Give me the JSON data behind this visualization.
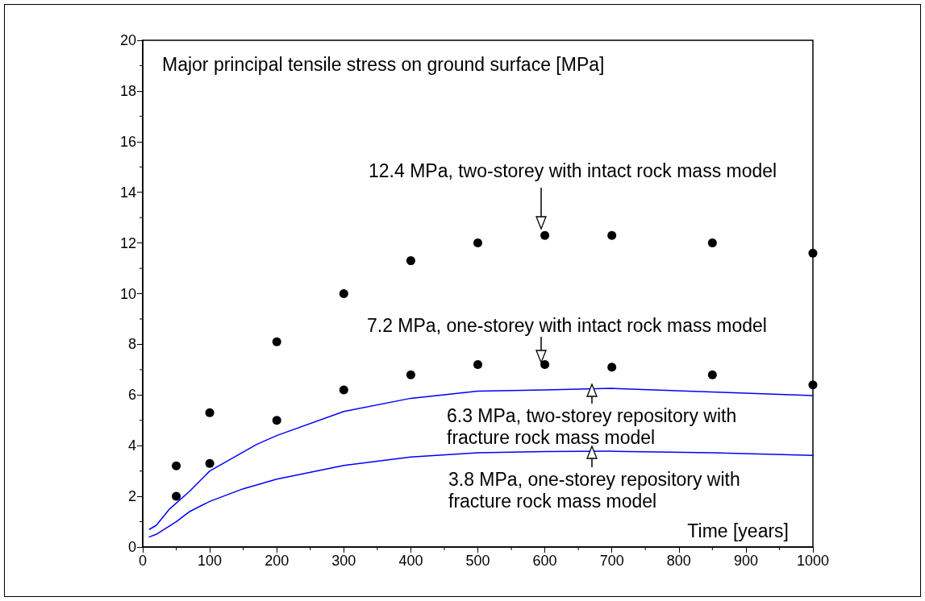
{
  "chart_data": {
    "type": "scatter",
    "ylabel": "Major principal tensile stress on ground surface [MPa]",
    "xlabel": "Time [years]",
    "xlim": [
      0,
      1000
    ],
    "xticks": [
      0,
      100,
      200,
      300,
      400,
      500,
      600,
      700,
      800,
      900,
      1000
    ],
    "ylim": [
      0,
      20
    ],
    "yticks": [
      0,
      2,
      4,
      6,
      8,
      10,
      12,
      14,
      16,
      18,
      20
    ],
    "grid": false,
    "series": [
      {
        "marker": "circle",
        "color": "#000000",
        "x": [
          50,
          100,
          200,
          300,
          400,
          500,
          600,
          700,
          850,
          1000
        ],
        "values": [
          3.2,
          5.3,
          8.1,
          10.0,
          11.3,
          12.0,
          12.3,
          12.3,
          12.0,
          11.6
        ]
      },
      {
        "marker": "circle",
        "color": "#000000",
        "x": [
          50,
          100,
          200,
          300,
          400,
          500,
          600,
          700,
          850,
          1000
        ],
        "values": [
          2.0,
          3.3,
          5.0,
          6.2,
          6.8,
          7.2,
          7.2,
          7.1,
          6.8,
          6.4
        ]
      },
      {
        "type": "line",
        "marker": "none",
        "line_style": "solid",
        "color": "#0000ff",
        "x": [
          10,
          20,
          40,
          70,
          100,
          170,
          200,
          300,
          400,
          500,
          600,
          700,
          1000
        ],
        "values": [
          0.7,
          0.85,
          1.5,
          2.2,
          3.0,
          4.05,
          4.4,
          5.35,
          5.87,
          6.15,
          6.2,
          6.26,
          5.98
        ]
      },
      {
        "type": "line",
        "marker": "none",
        "line_style": "solid",
        "color": "#0000ff",
        "x": [
          10,
          20,
          50,
          70,
          100,
          150,
          200,
          300,
          400,
          500,
          600,
          700,
          850,
          1000
        ],
        "values": [
          0.4,
          0.5,
          1.0,
          1.4,
          1.8,
          2.3,
          2.68,
          3.22,
          3.55,
          3.72,
          3.77,
          3.78,
          3.72,
          3.62
        ]
      }
    ],
    "annotations": [
      "12.4 MPa, two-storey with intact rock mass model",
      "7.2 MPa, one-storey with intact rock mass model",
      "6.3 MPa, two-storey repository with fracture rock mass model",
      "3.8 MPa, one-storey repository with fracture rock mass model"
    ]
  }
}
